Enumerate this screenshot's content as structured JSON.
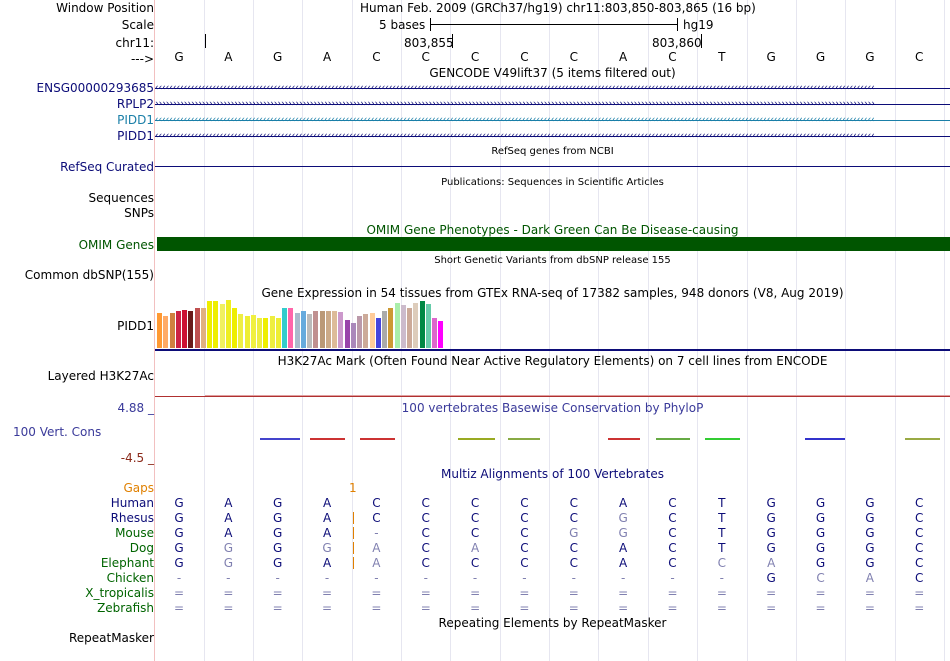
{
  "header": {
    "window_position_label": "Window Position",
    "window_position_value": "Human Feb. 2009 (GRCh37/hg19)   chr11:803,850-803,865 (16 bp)",
    "scale_label": "Scale",
    "scale_size": "5 bases",
    "scale_assembly": "hg19",
    "chrom_label": "chr11:",
    "coord_1": "803,855",
    "coord_2": "803,860",
    "arrow_label": "--->",
    "bases": [
      "G",
      "A",
      "G",
      "A",
      "C",
      "C",
      "C",
      "C",
      "C",
      "A",
      "C",
      "T",
      "G",
      "G",
      "G",
      "C"
    ]
  },
  "tracks": {
    "gencode_title": "GENCODE V49lift37 (5 items filtered out)",
    "gencode_items": [
      {
        "name": "ENSG00000293685",
        "color": "#0c0c78",
        "arrow": "‹"
      },
      {
        "name": "RPLP2",
        "color": "#0c0c78",
        "arrow": "›"
      },
      {
        "name": "PIDD1",
        "color": "#1a7fa8",
        "arrow": "‹"
      },
      {
        "name": "PIDD1",
        "color": "#0c0c78",
        "arrow": "‹"
      }
    ],
    "refseq_title": "RefSeq genes from NCBI",
    "refseq_label": "RefSeq Curated",
    "pubs_title": "Publications: Sequences in Scientific Articles",
    "pubs_label_1": "Sequences",
    "pubs_label_2": "SNPs",
    "omim_title": "OMIM Gene Phenotypes - Dark Green Can Be Disease-causing",
    "omim_label": "OMIM Genes",
    "dbsnp_title": "Short Genetic Variants from dbSNP release 155",
    "dbsnp_label": "Common dbSNP(155)",
    "gtex_title": "Gene Expression in 54 tissues from GTEx RNA-seq of 17382 samples, 948 donors (V8, Aug 2019)",
    "gtex_label": "PIDD1",
    "gtex_bar_colors": [
      "#ff9933",
      "#ffaa66",
      "#d08040",
      "#cc2244",
      "#cc1133",
      "#6a1a1a",
      "#c05050",
      "#e0b080",
      "#eeee00",
      "#eeee00",
      "#f0f060",
      "#eeee22",
      "#eeee00",
      "#eeee44",
      "#eeee33",
      "#f0f040",
      "#eeee44",
      "#eeee00",
      "#eeee40",
      "#eeee33",
      "#33cccc",
      "#ff66aa",
      "#aabbcc",
      "#66aadd",
      "#bbbbbb",
      "#c09090",
      "#bb9977",
      "#ccaa88",
      "#ddbb99",
      "#cc99cc",
      "#9944aa",
      "#aa88bb",
      "#bb99aa",
      "#ccaa99",
      "#ffcc99",
      "#4444dd",
      "#aaaaaa",
      "#cc9933",
      "#aaeeaa",
      "#ccbbcc",
      "#ccaa99",
      "#ddccbb",
      "#008844",
      "#66ccaa",
      "#dd66cc",
      "#ff00ff"
    ],
    "gtex_bar_values": [
      0.35,
      0.32,
      0.35,
      0.37,
      0.38,
      0.37,
      0.4,
      0.4,
      0.47,
      0.47,
      0.44,
      0.48,
      0.4,
      0.34,
      0.32,
      0.33,
      0.3,
      0.3,
      0.32,
      0.3,
      0.4,
      0.4,
      0.35,
      0.37,
      0.34,
      0.37,
      0.37,
      0.37,
      0.37,
      0.36,
      0.28,
      0.25,
      0.32,
      0.34,
      0.35,
      0.3,
      0.37,
      0.4,
      0.45,
      0.43,
      0.4,
      0.45,
      0.47,
      0.44,
      0.3,
      0.27
    ],
    "h3k27_title": "H3K27Ac Mark (Often Found Near Active Regulatory Elements) on 7 cell lines from ENCODE",
    "h3k27_label": "Layered H3K27Ac",
    "phylop_title": "100 vertebrates Basewise Conservation by PhyloP",
    "phylop_max": "4.88 _",
    "phylop_label": "100 Vert. Cons",
    "phylop_min": "-4.5 _",
    "multiz_title": "Multiz Alignments of 100 Vertebrates",
    "gaps_label": "Gaps",
    "gaps_value": "1",
    "species": [
      {
        "name": "Human",
        "cells": [
          "G",
          "A",
          "G",
          "A",
          "C",
          "C",
          "C",
          "C",
          "C",
          "A",
          "C",
          "T",
          "G",
          "G",
          "G",
          "C"
        ]
      },
      {
        "name": "Rhesus",
        "cells": [
          "G",
          "A",
          "G",
          "A",
          "C",
          "C",
          "C",
          "C",
          "C",
          "G",
          "C",
          "T",
          "G",
          "G",
          "G",
          "C"
        ]
      },
      {
        "name": "Mouse",
        "cells": [
          "G",
          "A",
          "G",
          "A",
          "-",
          "C",
          "C",
          "C",
          "G",
          "G",
          "C",
          "T",
          "G",
          "G",
          "G",
          "C"
        ]
      },
      {
        "name": "Dog",
        "cells": [
          "G",
          "G",
          "G",
          "G",
          "A",
          "C",
          "A",
          "C",
          "C",
          "A",
          "C",
          "T",
          "G",
          "G",
          "G",
          "C"
        ]
      },
      {
        "name": "Elephant",
        "cells": [
          "G",
          "G",
          "G",
          "A",
          "A",
          "C",
          "C",
          "C",
          "C",
          "A",
          "C",
          "C",
          "A",
          "G",
          "G",
          "C"
        ]
      },
      {
        "name": "Chicken",
        "cells": [
          "-",
          "-",
          "-",
          "-",
          "-",
          "-",
          "-",
          "-",
          "-",
          "-",
          "-",
          "-",
          "G",
          "C",
          "A",
          "C"
        ]
      },
      {
        "name": "X_tropicalis",
        "cells": [
          "=",
          "=",
          "=",
          "=",
          "=",
          "=",
          "=",
          "=",
          "=",
          "=",
          "=",
          "=",
          "=",
          "=",
          "=",
          "="
        ]
      },
      {
        "name": "Zebrafish",
        "cells": [
          "=",
          "=",
          "=",
          "=",
          "=",
          "=",
          "=",
          "=",
          "=",
          "=",
          "=",
          "=",
          "=",
          "=",
          "=",
          "="
        ]
      }
    ],
    "rmsk_title": "Repeating Elements by RepeatMasker",
    "rmsk_label": "RepeatMasker"
  },
  "colors": {
    "nav": "#0c0c78",
    "omim": "#005500",
    "phylop": "#3a3a9a",
    "gaps": "#e08000",
    "mismatch": "#8080b0",
    "species": "#006400"
  }
}
